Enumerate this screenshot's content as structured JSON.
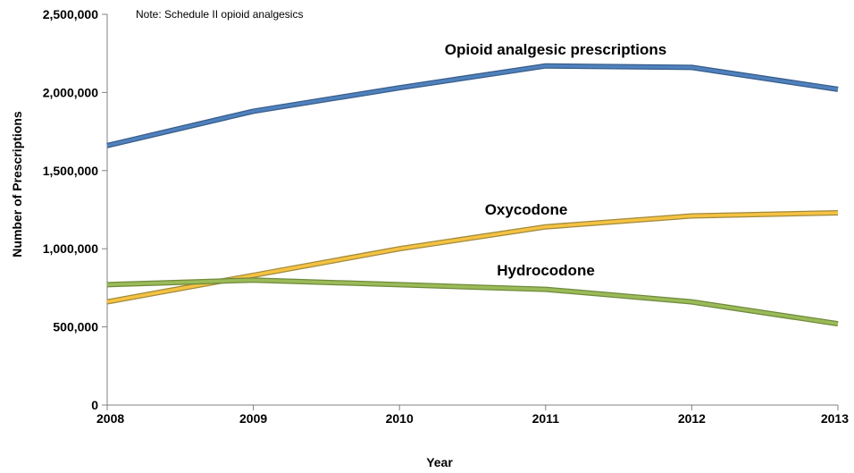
{
  "chart_data": {
    "type": "line",
    "note": "Note: Schedule II opioid analgesics",
    "xlabel": "Year",
    "ylabel": "Number of Prescriptions",
    "categories": [
      "2008",
      "2009",
      "2010",
      "2011",
      "2012",
      "2013"
    ],
    "ylim": [
      0,
      2500000
    ],
    "yticks": [
      0,
      500000,
      1000000,
      1500000,
      2000000,
      2500000
    ],
    "ytick_labels": [
      "0",
      "500,000",
      "1,000,000",
      "1,500,000",
      "2,000,000",
      "2,500,000"
    ],
    "grid": false,
    "legend": "none (series labeled directly on lines)",
    "series": [
      {
        "name": "Opioid analgesic prescriptions",
        "values": [
          1660000,
          1880000,
          2030000,
          2170000,
          2160000,
          2020000
        ],
        "color": "#4f81bd",
        "outline": "#385d8a"
      },
      {
        "name": "Oxycodone",
        "values": [
          660000,
          830000,
          1000000,
          1140000,
          1210000,
          1230000
        ],
        "color": "#f5c242",
        "outline": "#a08a3c"
      },
      {
        "name": "Hydrocodone",
        "values": [
          770000,
          800000,
          770000,
          740000,
          660000,
          520000
        ],
        "color": "#9bbb59",
        "outline": "#6f8a3c"
      }
    ]
  }
}
